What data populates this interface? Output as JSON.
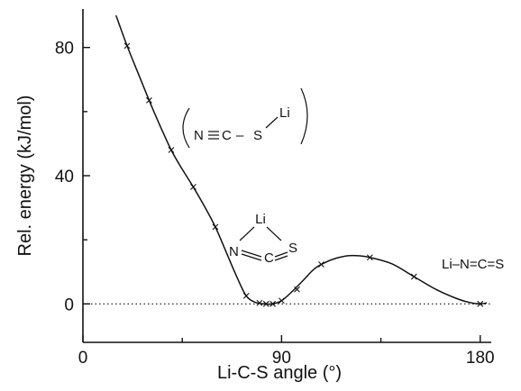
{
  "chart_data": {
    "type": "line",
    "title": "",
    "xlabel": "Li-C-S angle (°)",
    "ylabel": "Rel. energy (kJ/mol)",
    "xlim": [
      0,
      185
    ],
    "ylim": [
      -12,
      92
    ],
    "xticks": [
      0,
      90,
      180
    ],
    "yticks": [
      0,
      40,
      80
    ],
    "x_tick_labels": [
      "0",
      "90",
      "180"
    ],
    "y_tick_labels": [
      "0",
      "40",
      "80"
    ],
    "grid": false,
    "reference_line_y": 0,
    "series": [
      {
        "curve": [
          [
            15,
            90
          ],
          [
            20,
            80.5
          ],
          [
            25,
            72
          ],
          [
            30,
            63.5
          ],
          [
            35,
            55.5
          ],
          [
            40,
            48
          ],
          [
            45,
            42
          ],
          [
            50,
            36.5
          ],
          [
            55,
            30.5
          ],
          [
            60,
            24
          ],
          [
            65,
            16
          ],
          [
            70,
            8
          ],
          [
            74,
            2.5
          ],
          [
            78,
            0.5
          ],
          [
            82,
            0
          ],
          [
            86,
            0
          ],
          [
            90,
            1
          ],
          [
            95,
            4
          ],
          [
            100,
            7.5
          ],
          [
            105,
            11
          ],
          [
            110,
            13
          ],
          [
            115,
            14.3
          ],
          [
            120,
            15
          ],
          [
            125,
            15
          ],
          [
            130,
            14.5
          ],
          [
            140,
            12.5
          ],
          [
            150,
            8.5
          ],
          [
            160,
            4.5
          ],
          [
            170,
            1.5
          ],
          [
            176,
            0.3
          ],
          [
            180,
            0
          ],
          [
            183,
            0.3
          ]
        ],
        "markers": [
          [
            20,
            80.5
          ],
          [
            30,
            63.5
          ],
          [
            40,
            48
          ],
          [
            50,
            36.5
          ],
          [
            60,
            24
          ],
          [
            74,
            2.5
          ],
          [
            80,
            0.3
          ],
          [
            83,
            0
          ],
          [
            86,
            0
          ],
          [
            90,
            1
          ],
          [
            97,
            4.5
          ],
          [
            108,
            12.3
          ],
          [
            130,
            14.5
          ],
          [
            150,
            8.5
          ],
          [
            180,
            0
          ]
        ]
      }
    ],
    "annotations": {
      "bracketed": {
        "n": "N",
        "c": "C",
        "s": "S",
        "li": "Li",
        "dash": "–"
      },
      "bridged": {
        "li": "Li",
        "n": "N",
        "c": "C",
        "s": "S"
      },
      "linear": {
        "text": "Li–N=C=S"
      }
    }
  }
}
